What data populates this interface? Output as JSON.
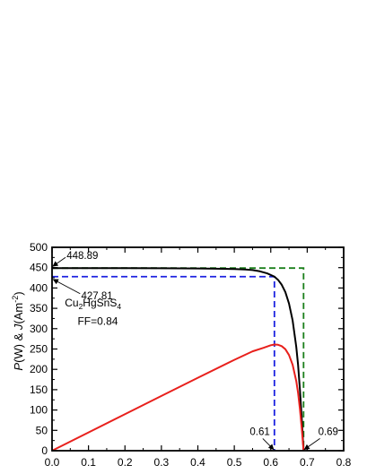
{
  "chart_data": {
    "type": "line",
    "title": "",
    "ylabel_parts": [
      "P",
      "(W) & ",
      "J",
      "(Am",
      "-2",
      ")"
    ],
    "xlim": [
      0.0,
      0.8
    ],
    "ylim": [
      0,
      500
    ],
    "x_ticks": [
      0.0,
      0.1,
      0.2,
      0.3,
      0.4,
      0.5,
      0.6,
      0.7,
      0.8
    ],
    "x_tick_labels": [
      "0.0",
      "0.1",
      "0.2",
      "0.3",
      "0.4",
      "0.5",
      "0.6",
      "0.7",
      "0.8"
    ],
    "y_ticks": [
      0,
      50,
      100,
      150,
      200,
      250,
      300,
      350,
      400,
      450,
      500
    ],
    "y_tick_labels": [
      "0",
      "50",
      "100",
      "150",
      "200",
      "250",
      "300",
      "350",
      "400",
      "450",
      "500"
    ],
    "grid": false,
    "colors": {
      "current": "#000000",
      "power": "#e8201c",
      "mpp_guide": "#1c22e0",
      "ideal_guide": "#1a7f1a"
    },
    "series": [
      {
        "key": "current",
        "x": [
          0.0,
          0.1,
          0.2,
          0.3,
          0.4,
          0.45,
          0.5,
          0.53,
          0.55,
          0.57,
          0.59,
          0.6,
          0.61,
          0.62,
          0.63,
          0.64,
          0.65,
          0.66,
          0.67,
          0.675,
          0.68,
          0.685,
          0.69
        ],
        "y": [
          448.89,
          448.8,
          448.7,
          448.5,
          448.0,
          447.5,
          446.5,
          445.5,
          444.0,
          441.0,
          436.0,
          432.0,
          427.81,
          420.0,
          408.0,
          390.0,
          362.0,
          320.0,
          255.0,
          210.0,
          150.0,
          80.0,
          0.0
        ]
      },
      {
        "key": "power",
        "x": [
          0.0,
          0.1,
          0.2,
          0.3,
          0.4,
          0.5,
          0.55,
          0.58,
          0.6,
          0.61,
          0.62,
          0.63,
          0.64,
          0.65,
          0.66,
          0.67,
          0.675,
          0.68,
          0.685,
          0.69
        ],
        "y": [
          0.0,
          44.9,
          89.7,
          134.6,
          179.2,
          223.3,
          244.2,
          252.9,
          259.2,
          261.0,
          260.4,
          257.0,
          249.6,
          235.3,
          211.2,
          170.9,
          141.8,
          102.0,
          54.8,
          0.0
        ]
      }
    ],
    "guides": {
      "mpp": {
        "vmp": 0.61,
        "jmp": 427.81
      },
      "ideal": {
        "voc": 0.69,
        "jsc": 448.89
      }
    },
    "annotations": {
      "jsc_label": "448.89",
      "jmp_label": "427.81",
      "vmp_label": "0.61",
      "voc_label": "0.69",
      "material_main": "Cu",
      "material_sub1": "2",
      "material_mid": "HgSnS",
      "material_sub2": "4",
      "ff_label": "FF=0.84"
    }
  }
}
